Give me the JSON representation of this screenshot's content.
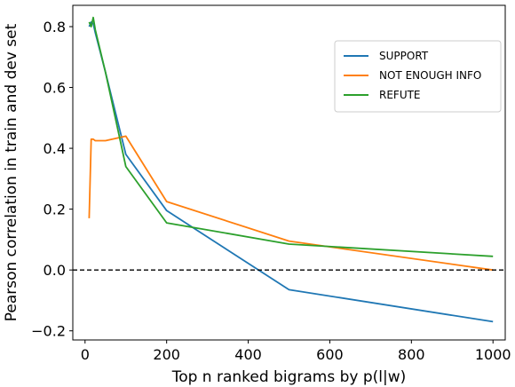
{
  "chart_data": {
    "type": "line",
    "title": "",
    "xlabel": "Top n ranked bigrams by p(l|w)",
    "ylabel": "Pearson correlation in train and dev set",
    "xlim": [
      -30,
      1030
    ],
    "ylim": [
      -0.23,
      0.87
    ],
    "xticks": [
      0,
      200,
      400,
      600,
      800,
      1000
    ],
    "yticks": [
      -0.2,
      0.0,
      0.2,
      0.4,
      0.6,
      0.8
    ],
    "ytick_labels": [
      "−0.2",
      "0.0",
      "0.2",
      "0.4",
      "0.6",
      "0.8"
    ],
    "grid": false,
    "legend_position": "top-right",
    "reference_line": {
      "y": 0,
      "style": "dashed",
      "color": "#000000"
    },
    "series": [
      {
        "name": "SUPPORT",
        "color": "#1f77b4",
        "x": [
          10,
          15,
          20,
          25,
          50,
          100,
          200,
          500,
          1000
        ],
        "y": [
          0.8,
          0.815,
          0.81,
          0.78,
          0.65,
          0.38,
          0.195,
          -0.065,
          -0.17
        ]
      },
      {
        "name": "NOT ENOUGH INFO",
        "color": "#ff7f0e",
        "x": [
          10,
          15,
          20,
          25,
          50,
          100,
          200,
          500,
          1000
        ],
        "y": [
          0.17,
          0.43,
          0.43,
          0.425,
          0.425,
          0.44,
          0.225,
          0.095,
          0.0
        ]
      },
      {
        "name": "REFUTE",
        "color": "#2ca02c",
        "x": [
          10,
          15,
          20,
          25,
          50,
          100,
          200,
          500,
          1000
        ],
        "y": [
          0.815,
          0.8,
          0.83,
          0.79,
          0.65,
          0.34,
          0.155,
          0.085,
          0.045
        ]
      }
    ]
  }
}
